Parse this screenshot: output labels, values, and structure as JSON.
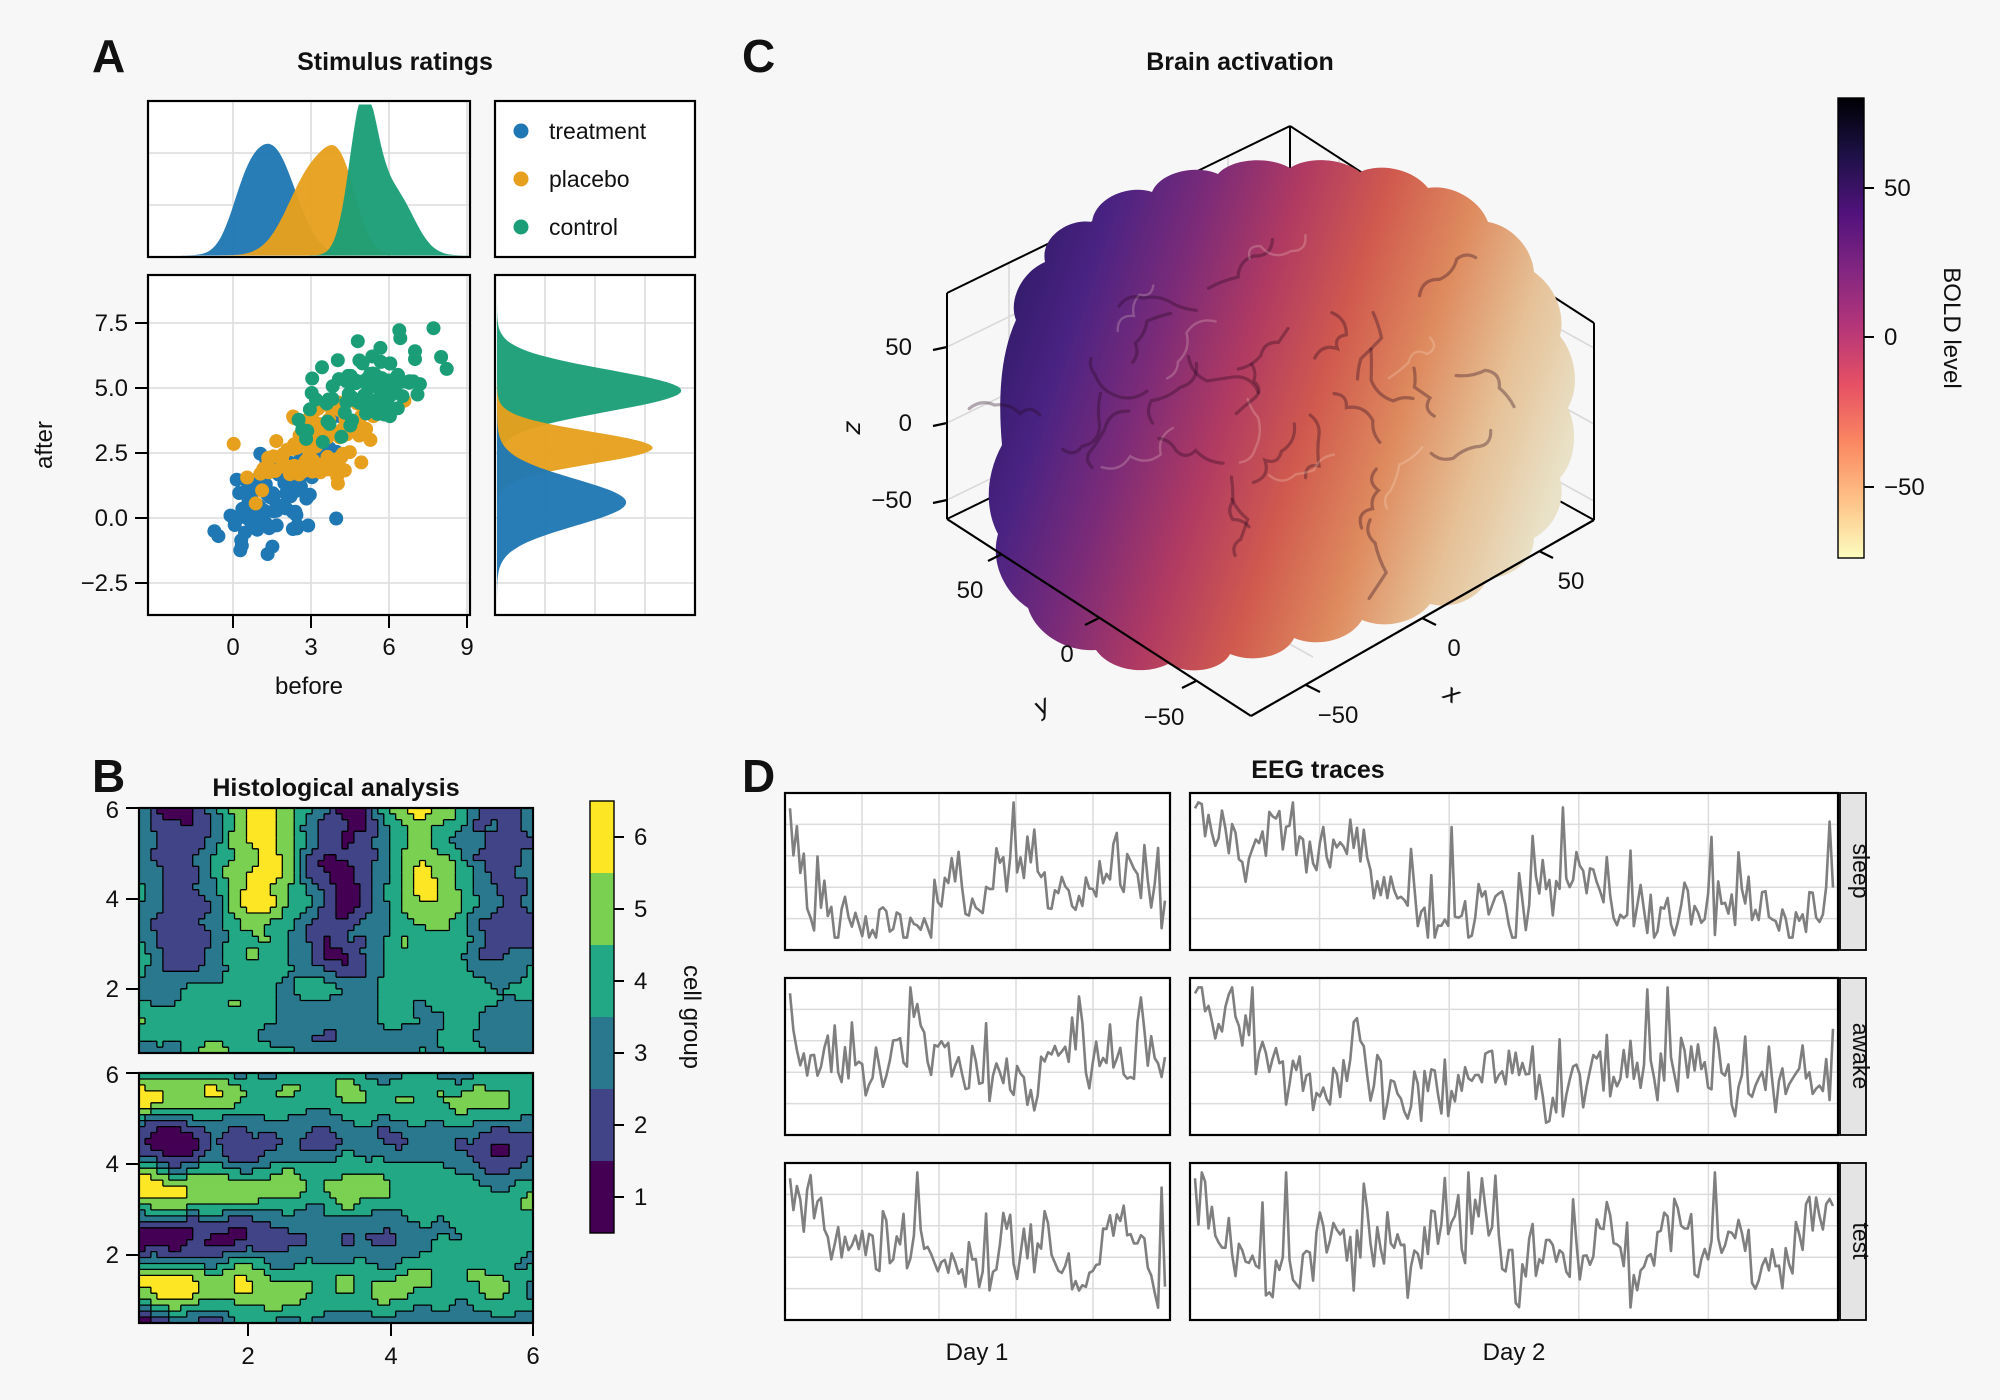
{
  "figure": {
    "panel_labels": [
      "A",
      "B",
      "C",
      "D"
    ],
    "background": "#f7f7f7",
    "grid_color": "#dcdcdc",
    "text_color": "#111111"
  },
  "chart_data": [
    {
      "panel": "A",
      "type": "scatter",
      "title": "Stimulus ratings",
      "xlabel": "before",
      "ylabel": "after",
      "x_ticks": [
        0,
        3,
        6,
        9
      ],
      "y_ticks": [
        7.5,
        5.0,
        2.5,
        0.0,
        -2.5
      ],
      "x_tick_labels": [
        "0",
        "3",
        "6",
        "9"
      ],
      "y_tick_labels": [
        "7.5",
        "5.0",
        "2.5",
        "0.0",
        "−2.5"
      ],
      "xlim": [
        -3.3,
        9.1
      ],
      "ylim": [
        -3.7,
        9.3
      ],
      "grid": true,
      "legend": {
        "position": "top-right",
        "items": [
          {
            "label": "treatment",
            "color": "#1f78b4"
          },
          {
            "label": "placebo",
            "color": "#e6a01d"
          },
          {
            "label": "control",
            "color": "#1b9e77"
          }
        ]
      },
      "groups": [
        {
          "name": "treatment",
          "color": "#1f78b4",
          "n": 95,
          "mean": [
            1.6,
            0.8
          ],
          "sd": [
            1.05,
            0.95
          ],
          "corr": 0.45,
          "seed": 11
        },
        {
          "name": "placebo",
          "color": "#e6a01d",
          "n": 95,
          "mean": [
            3.3,
            2.8
          ],
          "sd": [
            1.05,
            0.8
          ],
          "corr": 0.4,
          "seed": 22
        },
        {
          "name": "control",
          "color": "#1b9e77",
          "n": 95,
          "mean": [
            5.2,
            5.0
          ],
          "sd": [
            1.15,
            0.95
          ],
          "corr": 0.4,
          "seed": 33
        }
      ],
      "top_density": [
        {
          "name": "treatment",
          "color": "#1f78b4",
          "mix": [
            {
              "mu": 1.5,
              "s": 0.9,
              "h": 0.72
            },
            {
              "mu": 0.4,
              "s": 0.55,
              "h": 0.2
            }
          ]
        },
        {
          "name": "placebo",
          "color": "#e6a01d",
          "mix": [
            {
              "mu": 3.1,
              "s": 0.95,
              "h": 0.58
            },
            {
              "mu": 4.2,
              "s": 0.6,
              "h": 0.38
            }
          ]
        },
        {
          "name": "control",
          "color": "#1b9e77",
          "mix": [
            {
              "mu": 5.0,
              "s": 0.52,
              "h": 1.0
            },
            {
              "mu": 6.2,
              "s": 0.75,
              "h": 0.42
            }
          ]
        }
      ],
      "right_density": [
        {
          "name": "control",
          "color": "#1b9e77",
          "mix": [
            {
              "mu": 4.9,
              "s": 0.8,
              "h": 0.97
            }
          ]
        },
        {
          "name": "placebo",
          "color": "#e6a01d",
          "mix": [
            {
              "mu": 2.7,
              "s": 0.62,
              "h": 0.82
            }
          ]
        },
        {
          "name": "treatment",
          "color": "#1f78b4",
          "mix": [
            {
              "mu": 0.6,
              "s": 0.9,
              "h": 0.68
            }
          ]
        }
      ]
    },
    {
      "panel": "B",
      "type": "contour",
      "title": "Histological analysis",
      "x_ticks": [
        2,
        4,
        6
      ],
      "y_ticks": [
        6,
        4,
        2
      ],
      "x_tick_labels": [
        "2",
        "4",
        "6"
      ],
      "y_tick_labels": [
        "6",
        "4",
        "2"
      ],
      "xlim": [
        0.5,
        6
      ],
      "ylim": [
        0.5,
        6
      ],
      "levels": [
        1,
        2,
        3,
        4,
        5,
        6
      ],
      "level_colors": [
        "#440154",
        "#414487",
        "#2a788e",
        "#22a884",
        "#7ad151",
        "#fde725"
      ],
      "colorbar": {
        "label": "cell group",
        "tick_labels": [
          "6",
          "5",
          "4",
          "3",
          "2",
          "1"
        ]
      },
      "subpanels": [
        {
          "pattern": "vertical-bands",
          "seed": 7
        },
        {
          "pattern": "horizontal-bands",
          "seed": 9
        }
      ]
    },
    {
      "panel": "C",
      "type": "surface-3d",
      "title": "Brain activation",
      "x_axis": {
        "label": "x",
        "tick_labels": [
          "50",
          "0",
          "−50"
        ]
      },
      "y_axis": {
        "label": "y",
        "tick_labels": [
          "50",
          "0",
          "−50"
        ]
      },
      "z_axis": {
        "label": "z",
        "tick_labels": [
          "50",
          "0",
          "−50"
        ]
      },
      "colorbar": {
        "label": "BOLD level",
        "tick_labels": [
          "50",
          "0",
          "−50"
        ],
        "range": [
          -75,
          80
        ],
        "stops": [
          "#000004",
          "#1d1147",
          "#51127c",
          "#822681",
          "#b63679",
          "#e65164",
          "#fb8861",
          "#fec287",
          "#fcfdbf"
        ]
      },
      "surface_gradient": [
        "#2e1a66",
        "#4b2383",
        "#7c2b78",
        "#b03a62",
        "#d05a4e",
        "#de8a5e",
        "#e6c096",
        "#e9e2c8"
      ],
      "squiggle_seed": 55
    },
    {
      "panel": "D",
      "type": "line-grid",
      "title": "EEG traces",
      "col_labels": [
        "Day 1",
        "Day 2"
      ],
      "row_labels": [
        "sleep",
        "awake",
        "test"
      ],
      "line_color": "#7f7f7f",
      "points_per_col": [
        110,
        190
      ],
      "seeds": [
        [
          101,
          102
        ],
        [
          103,
          104
        ],
        [
          105,
          106
        ]
      ]
    }
  ]
}
